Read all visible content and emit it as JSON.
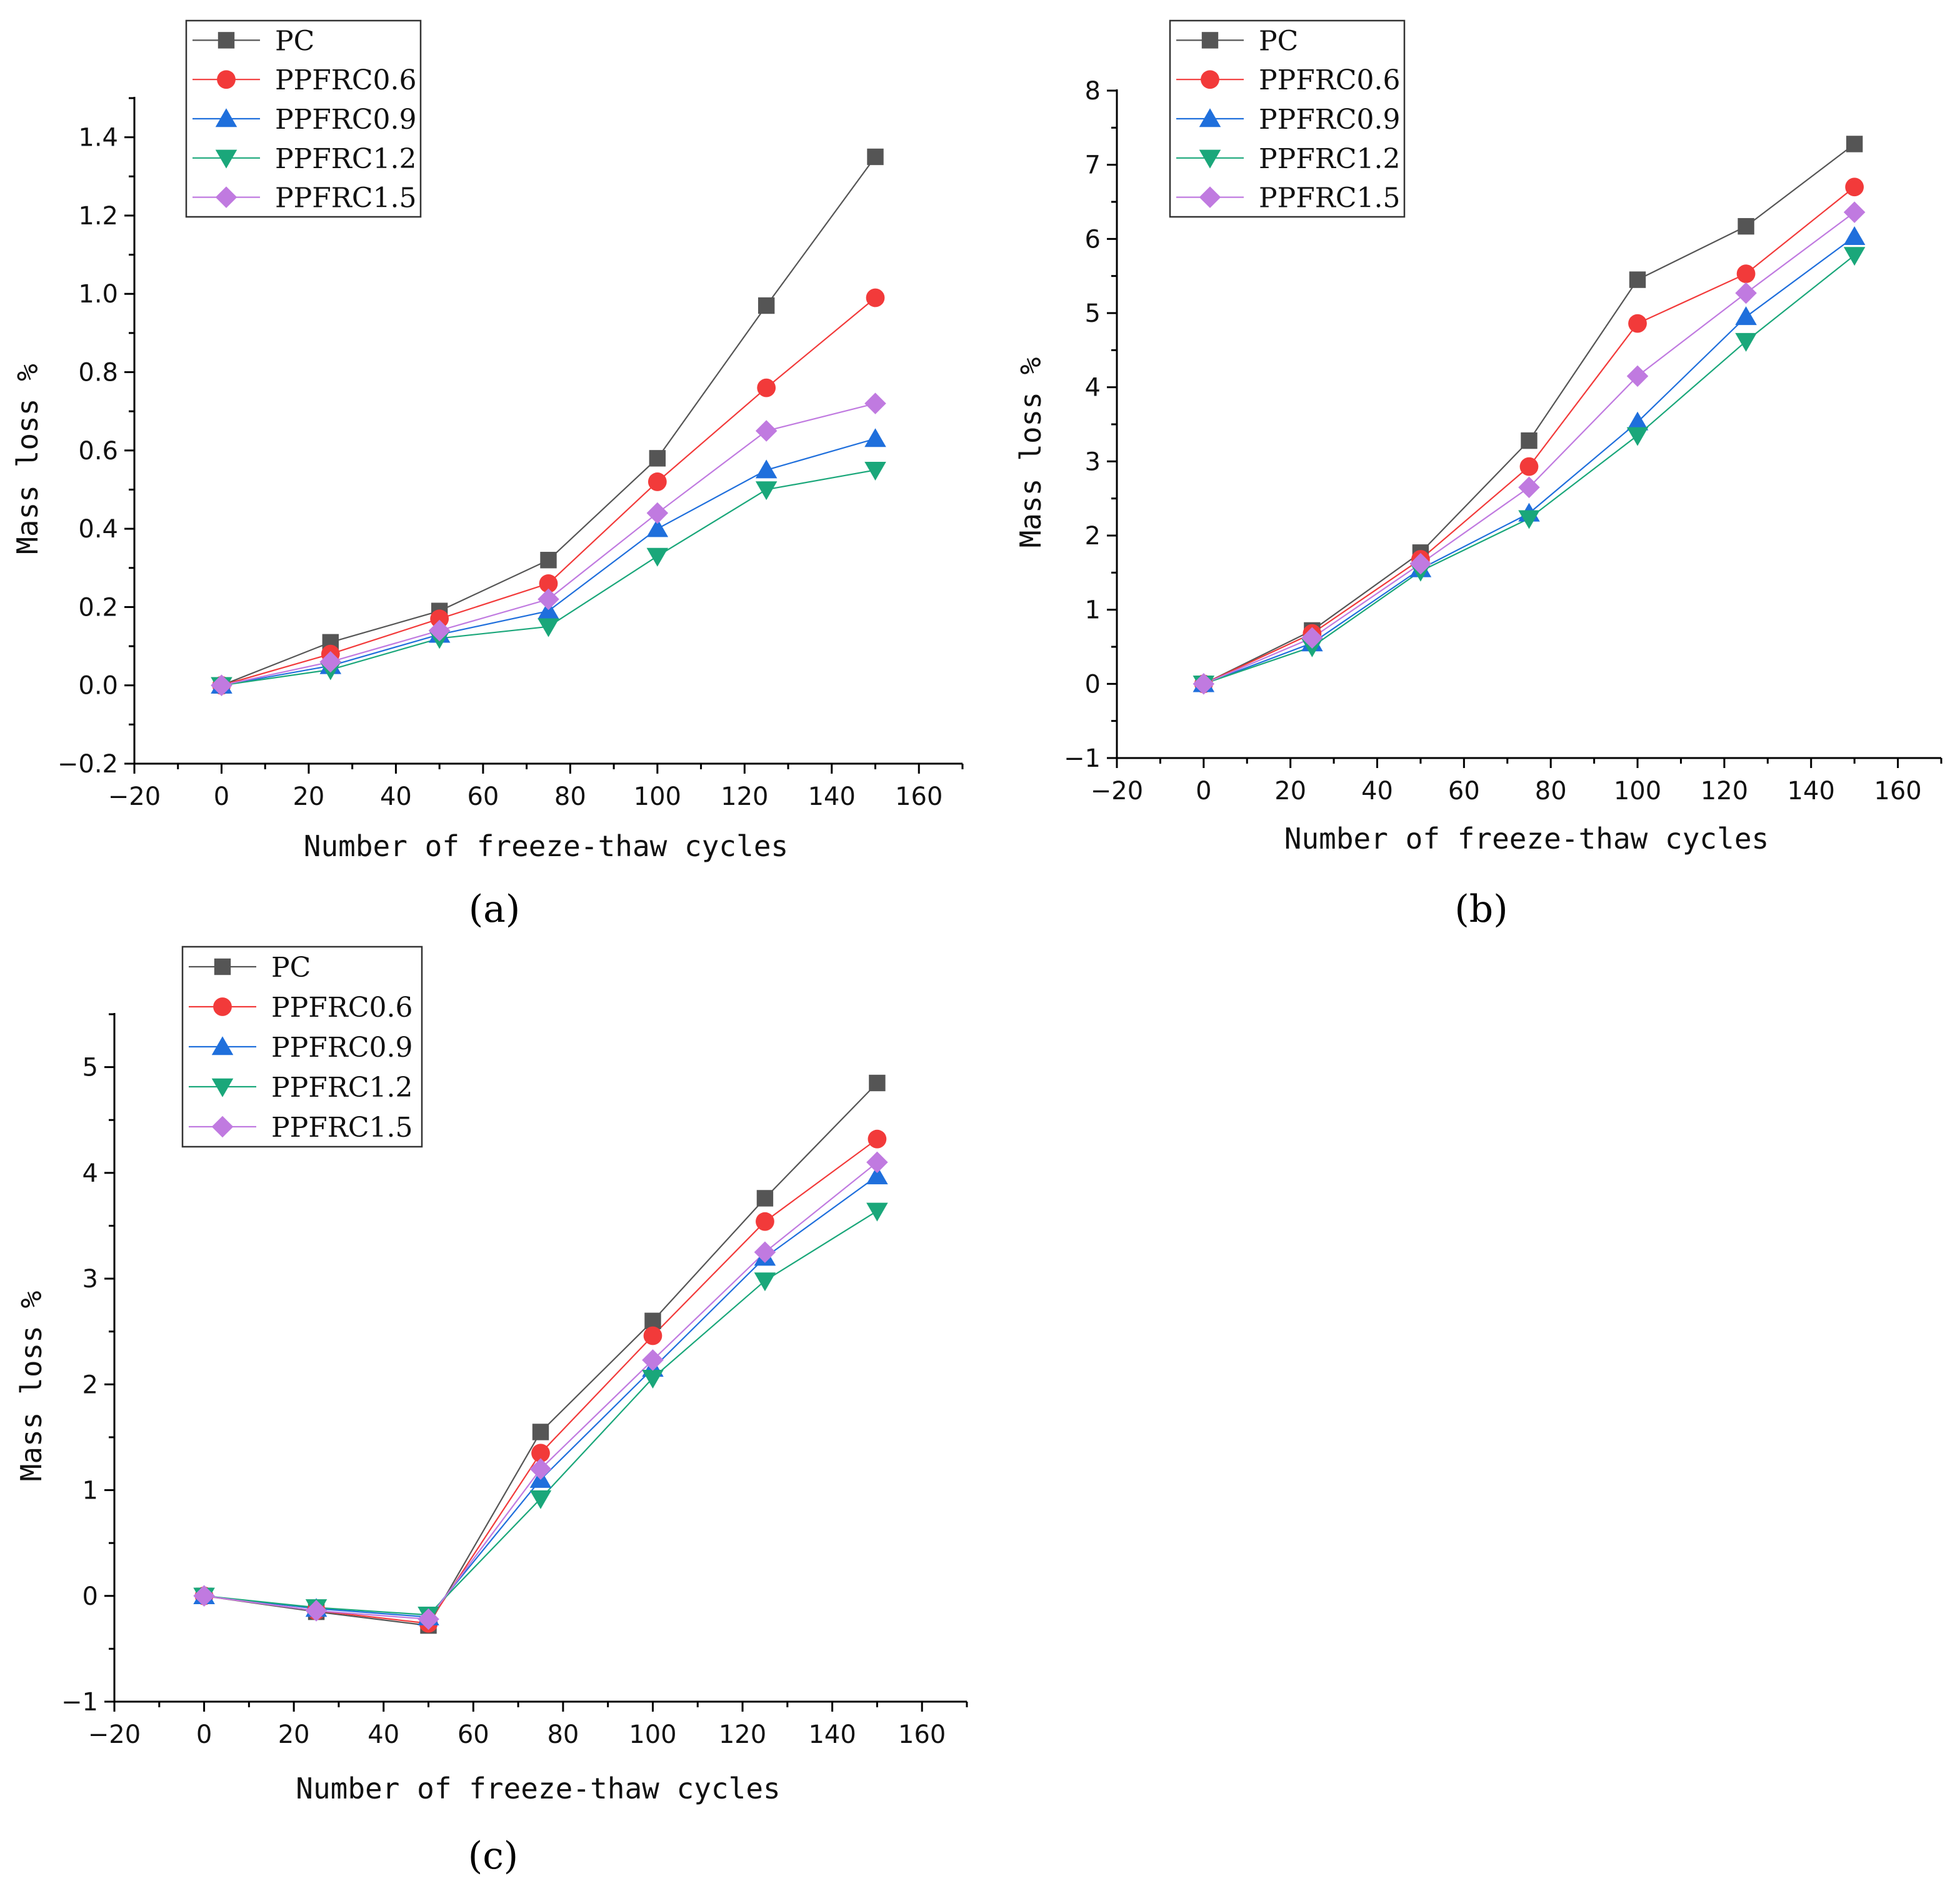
{
  "figure": {
    "colors": {
      "PC": "#555555",
      "PPFRC0.6": "#f23a3a",
      "PPFRC0.9": "#1f6fdc",
      "PPFRC1.2": "#1aa77a",
      "PPFRC1.5": "#c07ae0"
    },
    "markers": {
      "PC": "square",
      "PPFRC0.6": "circle",
      "PPFRC0.9": "triangle-up",
      "PPFRC1.2": "triangle-down",
      "PPFRC1.5": "diamond"
    }
  },
  "chart_data": [
    {
      "type": "line",
      "panel_label": "(a)",
      "title": "",
      "xlabel": "Number of freeze-thaw cycles",
      "ylabel": "Mass loss %",
      "x": [
        0,
        25,
        50,
        75,
        100,
        125,
        150
      ],
      "xlim": [
        -20,
        170
      ],
      "ylim": [
        -0.2,
        1.5
      ],
      "xticks": [
        -20,
        0,
        20,
        40,
        60,
        80,
        100,
        120,
        140,
        160
      ],
      "xtick_labels": [
        "−20",
        "0",
        "20",
        "40",
        "60",
        "80",
        "100",
        "120",
        "140",
        "160"
      ],
      "yticks": [
        -0.2,
        0.0,
        0.2,
        0.4,
        0.6,
        0.8,
        1.0,
        1.2,
        1.4
      ],
      "ytick_labels": [
        "−0.2",
        "0.0",
        "0.2",
        "0.4",
        "0.6",
        "0.8",
        "1.0",
        "1.2",
        "1.4"
      ],
      "legend_position": "top-left",
      "series": [
        {
          "name": "PC",
          "label": "PC",
          "values": [
            0,
            0.11,
            0.19,
            0.32,
            0.58,
            0.97,
            1.35
          ]
        },
        {
          "name": "PPFRC0.6",
          "label": "PPFRC0.6",
          "values": [
            0,
            0.08,
            0.17,
            0.26,
            0.52,
            0.76,
            0.99
          ]
        },
        {
          "name": "PPFRC0.9",
          "label": "PPFRC0.9",
          "values": [
            0,
            0.05,
            0.13,
            0.19,
            0.4,
            0.55,
            0.63
          ]
        },
        {
          "name": "PPFRC1.2",
          "label": "PPFRC1.2",
          "values": [
            0,
            0.04,
            0.12,
            0.15,
            0.33,
            0.5,
            0.55
          ]
        },
        {
          "name": "PPFRC1.5",
          "label": "PPFRC1.5",
          "values": [
            0,
            0.06,
            0.14,
            0.22,
            0.44,
            0.65,
            0.72
          ]
        }
      ]
    },
    {
      "type": "line",
      "panel_label": "(b)",
      "title": "",
      "xlabel": "Number of freeze-thaw cycles",
      "ylabel": "Mass loss %",
      "x": [
        0,
        25,
        50,
        75,
        100,
        125,
        150
      ],
      "xlim": [
        -20,
        170
      ],
      "ylim": [
        -1,
        8
      ],
      "xticks": [
        -20,
        0,
        20,
        40,
        60,
        80,
        100,
        120,
        140,
        160
      ],
      "xtick_labels": [
        "−20",
        "0",
        "20",
        "40",
        "60",
        "80",
        "100",
        "120",
        "140",
        "160"
      ],
      "yticks": [
        -1,
        0,
        1,
        2,
        3,
        4,
        5,
        6,
        7,
        8
      ],
      "ytick_labels": [
        "−1",
        "0",
        "1",
        "2",
        "3",
        "4",
        "5",
        "6",
        "7",
        "8"
      ],
      "legend_position": "top-left",
      "series": [
        {
          "name": "PC",
          "label": "PC",
          "values": [
            0,
            0.72,
            1.77,
            3.28,
            5.45,
            6.17,
            7.28
          ]
        },
        {
          "name": "PPFRC0.6",
          "label": "PPFRC0.6",
          "values": [
            0,
            0.68,
            1.68,
            2.93,
            4.86,
            5.53,
            6.7
          ]
        },
        {
          "name": "PPFRC0.9",
          "label": "PPFRC0.9",
          "values": [
            0,
            0.55,
            1.55,
            2.3,
            3.53,
            4.95,
            6.03
          ]
        },
        {
          "name": "PPFRC1.2",
          "label": "PPFRC1.2",
          "values": [
            0,
            0.5,
            1.52,
            2.23,
            3.35,
            4.62,
            5.78
          ]
        },
        {
          "name": "PPFRC1.5",
          "label": "PPFRC1.5",
          "values": [
            0,
            0.62,
            1.62,
            2.65,
            4.15,
            5.27,
            6.36
          ]
        }
      ]
    },
    {
      "type": "line",
      "panel_label": "(c)",
      "title": "",
      "xlabel": "Number of freeze-thaw cycles",
      "ylabel": "Mass loss %",
      "x": [
        0,
        25,
        50,
        75,
        100,
        125,
        150
      ],
      "xlim": [
        -20,
        170
      ],
      "ylim": [
        -1,
        5.5
      ],
      "xticks": [
        -20,
        0,
        20,
        40,
        60,
        80,
        100,
        120,
        140,
        160
      ],
      "xtick_labels": [
        "−20",
        "0",
        "20",
        "40",
        "60",
        "80",
        "100",
        "120",
        "140",
        "160"
      ],
      "yticks": [
        -1,
        0,
        1,
        2,
        3,
        4,
        5
      ],
      "ytick_labels": [
        "−1",
        "0",
        "1",
        "2",
        "3",
        "4",
        "5"
      ],
      "legend_position": "top-left",
      "series": [
        {
          "name": "PC",
          "label": "PC",
          "values": [
            0,
            -0.15,
            -0.28,
            1.55,
            2.6,
            3.76,
            4.85
          ]
        },
        {
          "name": "PPFRC0.6",
          "label": "PPFRC0.6",
          "values": [
            0,
            -0.14,
            -0.26,
            1.35,
            2.46,
            3.54,
            4.32
          ]
        },
        {
          "name": "PPFRC0.9",
          "label": "PPFRC0.9",
          "values": [
            0,
            -0.12,
            -0.2,
            1.1,
            2.15,
            3.2,
            3.97
          ]
        },
        {
          "name": "PPFRC1.2",
          "label": "PPFRC1.2",
          "values": [
            0,
            -0.11,
            -0.18,
            0.92,
            2.06,
            2.98,
            3.64
          ]
        },
        {
          "name": "PPFRC1.5",
          "label": "PPFRC1.5",
          "values": [
            0,
            -0.14,
            -0.22,
            1.2,
            2.23,
            3.25,
            4.1
          ]
        }
      ]
    }
  ]
}
